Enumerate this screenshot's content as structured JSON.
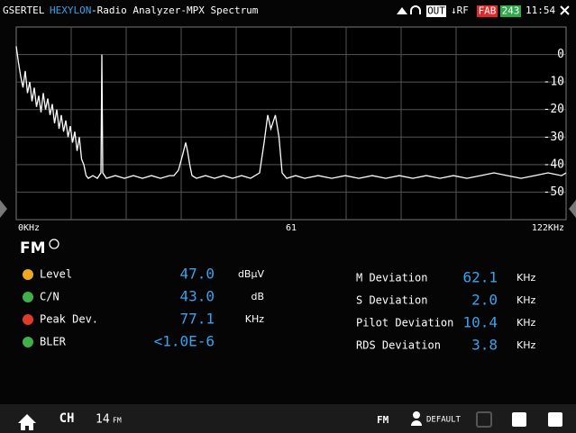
{
  "header": {
    "brand": "GSERTEL",
    "product": "HEXYLON",
    "screen": "-Radio Analyzer-MPX Spectrum",
    "out": "OUT",
    "rf": "↓RF",
    "fab": "FAB",
    "channel": "243",
    "time": "11:54"
  },
  "chart_data": {
    "type": "line",
    "color": "#ffffff",
    "grid": true,
    "xlim": [
      0,
      122
    ],
    "ylim": [
      -60,
      10
    ],
    "xticks": [
      {
        "value": 0,
        "label": "0KHz"
      },
      61,
      {
        "value": 122,
        "label": "122KHz"
      }
    ],
    "yticks": [
      0,
      -10,
      -20,
      -30,
      -40,
      -50
    ],
    "x": [
      0,
      0.5,
      1,
      1.5,
      2,
      2.5,
      3,
      3.5,
      4,
      4.5,
      5,
      5.5,
      6,
      6.5,
      7,
      7.5,
      8,
      8.5,
      9,
      9.5,
      10,
      10.5,
      11,
      11.5,
      12,
      12.5,
      13,
      13.5,
      14,
      14.5,
      15,
      15.5,
      16,
      17,
      18,
      18.8,
      19,
      19.2,
      20,
      22,
      24,
      26,
      28,
      30,
      32,
      34,
      35,
      36,
      37,
      37.6,
      38,
      38.5,
      39,
      40,
      42,
      44,
      46,
      48,
      50,
      52,
      54,
      55,
      55.8,
      56.5,
      57.5,
      58.3,
      59,
      60,
      62,
      64,
      67,
      70,
      73,
      76,
      79,
      82,
      85,
      88,
      91,
      94,
      97,
      100,
      103,
      106,
      109,
      112,
      115,
      118,
      121,
      122
    ],
    "values": [
      3,
      -3,
      -8,
      -12,
      -6,
      -14,
      -10,
      -17,
      -12,
      -19,
      -15,
      -21,
      -14,
      -20,
      -16,
      -22,
      -18,
      -25,
      -20,
      -27,
      -22,
      -28,
      -24,
      -30,
      -26,
      -32,
      -28,
      -35,
      -30,
      -38,
      -40,
      -44,
      -45,
      -44,
      -45,
      -43,
      0,
      -43,
      -45,
      -44,
      -45,
      -44,
      -45,
      -44,
      -45,
      -44,
      -44,
      -42,
      -36,
      -32,
      -35,
      -40,
      -44,
      -45,
      -44,
      -45,
      -44,
      -45,
      -44,
      -45,
      -43,
      -32,
      -22,
      -27,
      -22,
      -30,
      -43,
      -45,
      -44,
      -45,
      -44,
      -45,
      -44,
      -45,
      -44,
      -45,
      -44,
      -45,
      -44,
      -45,
      -44,
      -45,
      -44,
      -43,
      -44,
      -45,
      -44,
      -43,
      -44,
      -43
    ]
  },
  "panel": {
    "title": "FM",
    "left": [
      {
        "label": "Level",
        "value": "47.0",
        "unit": "dBµV"
      },
      {
        "label": "C/N",
        "value": "43.0",
        "unit": "dB"
      },
      {
        "label": "Peak Dev.",
        "value": "77.1",
        "unit": "KHz"
      },
      {
        "label": "BLER",
        "value": "<1.0E-6"
      }
    ],
    "right": [
      {
        "label": "M Deviation",
        "value": "62.1",
        "unit": "KHz"
      },
      {
        "label": "S Deviation",
        "value": "2.0",
        "unit": "KHz"
      },
      {
        "label": "Pilot Deviation",
        "value": "10.4",
        "unit": "KHz"
      },
      {
        "label": "RDS Deviation",
        "value": "3.8",
        "unit": "KHz"
      }
    ]
  },
  "footer": {
    "ch": "CH",
    "channel": "14",
    "band": "FM",
    "mode": "FM",
    "profile": "DEFAULT"
  }
}
